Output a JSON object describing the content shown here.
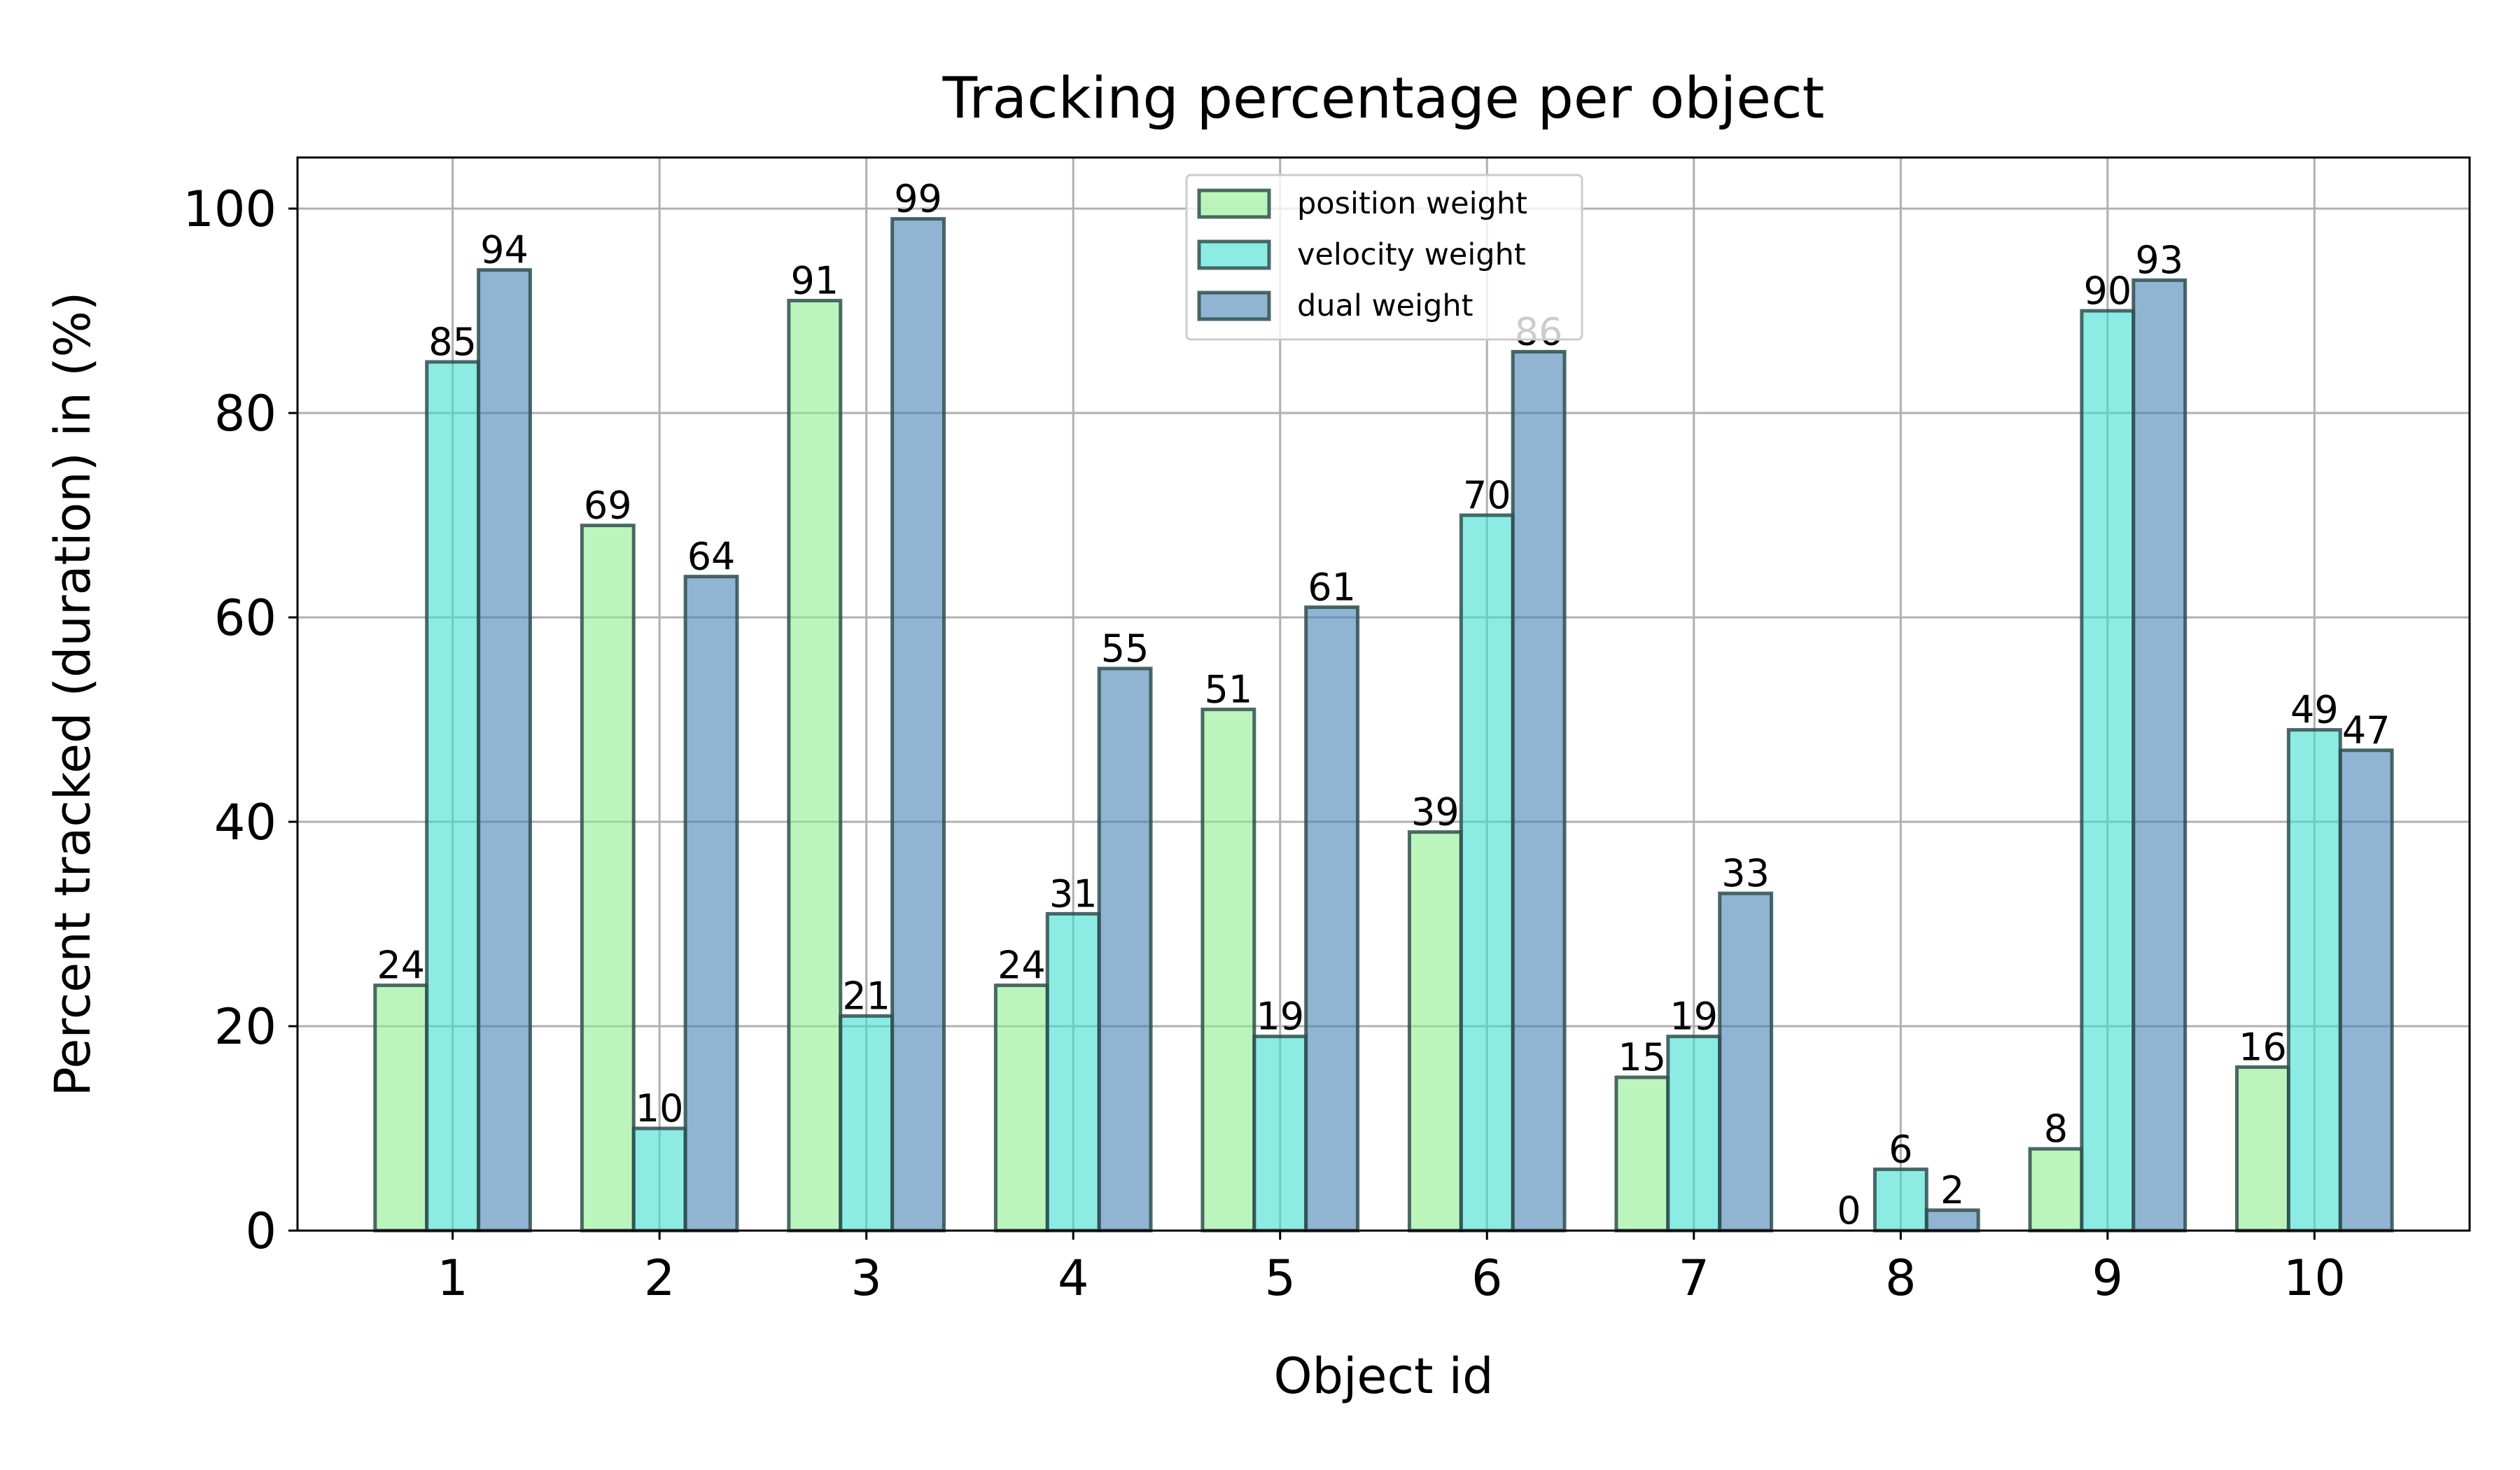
{
  "chart_data": {
    "type": "bar",
    "title": "Tracking percentage per object",
    "xlabel": "Object id",
    "ylabel": "Percent tracked (duration) in (%)",
    "categories": [
      "1",
      "2",
      "3",
      "4",
      "5",
      "6",
      "7",
      "8",
      "9",
      "10"
    ],
    "series": [
      {
        "name": "position weight",
        "color": "#90ee90",
        "values": [
          24,
          69,
          91,
          24,
          51,
          39,
          15,
          0,
          8,
          16
        ]
      },
      {
        "name": "velocity weight",
        "color": "#40e0d0",
        "values": [
          85,
          10,
          21,
          31,
          19,
          70,
          19,
          6,
          90,
          49
        ]
      },
      {
        "name": "dual weight",
        "color": "#4682b4",
        "values": [
          94,
          64,
          99,
          55,
          61,
          86,
          33,
          2,
          93,
          47
        ]
      }
    ],
    "ylim": [
      0,
      105
    ],
    "yticks": [
      0,
      20,
      40,
      60,
      80,
      100
    ],
    "grid": true,
    "legend_position": "top-center",
    "bar_edge_color": "#2f4f4f",
    "bar_alpha": 0.6
  }
}
